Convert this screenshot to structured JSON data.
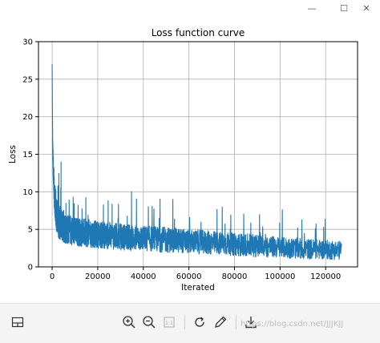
{
  "window": {
    "minimize_glyph": "—",
    "maximize_glyph": "☐",
    "close_glyph": "✕"
  },
  "chart_data": {
    "type": "line",
    "title": "Loss function curve",
    "xlabel": "Iterated",
    "ylabel": "Loss",
    "xlim": [
      -6000,
      134000
    ],
    "ylim": [
      0,
      30
    ],
    "xticks": [
      0,
      20000,
      40000,
      60000,
      80000,
      100000,
      120000
    ],
    "yticks": [
      0,
      5,
      10,
      15,
      20,
      25,
      30
    ],
    "grid": true,
    "color": "#1f77b4",
    "series": [
      {
        "x": [
          0,
          200,
          400,
          700,
          1000,
          1500,
          2000,
          2500,
          3000,
          4000,
          5000,
          6000,
          8000,
          10000,
          15000,
          20000,
          30000,
          40000,
          50000,
          60000,
          70000,
          80000,
          90000,
          100000,
          110000,
          120000,
          127000
        ],
        "y_mean": [
          27.0,
          17.0,
          14.0,
          11.5,
          9.5,
          8.0,
          7.0,
          6.3,
          6.0,
          5.6,
          5.3,
          5.1,
          4.9,
          4.7,
          4.5,
          4.3,
          4.0,
          3.8,
          3.6,
          3.4,
          3.2,
          3.0,
          2.8,
          2.6,
          2.4,
          2.3,
          2.2
        ],
        "y_spread": [
          0,
          1.5,
          2.0,
          2.2,
          2.3,
          2.4,
          2.4,
          2.4,
          2.3,
          2.2,
          2.1,
          2.0,
          2.0,
          1.9,
          1.9,
          1.8,
          1.8,
          1.7,
          1.7,
          1.6,
          1.6,
          1.5,
          1.5,
          1.4,
          1.4,
          1.3,
          1.3
        ]
      }
    ]
  },
  "toolbar": {
    "icons": [
      "layout-icon",
      "zoom-in-icon",
      "zoom-out-icon",
      "fit-icon",
      "reset-icon",
      "pen-icon",
      "download-icon"
    ],
    "watermark": "https://blog.csdn.net/JJJKJJ"
  }
}
